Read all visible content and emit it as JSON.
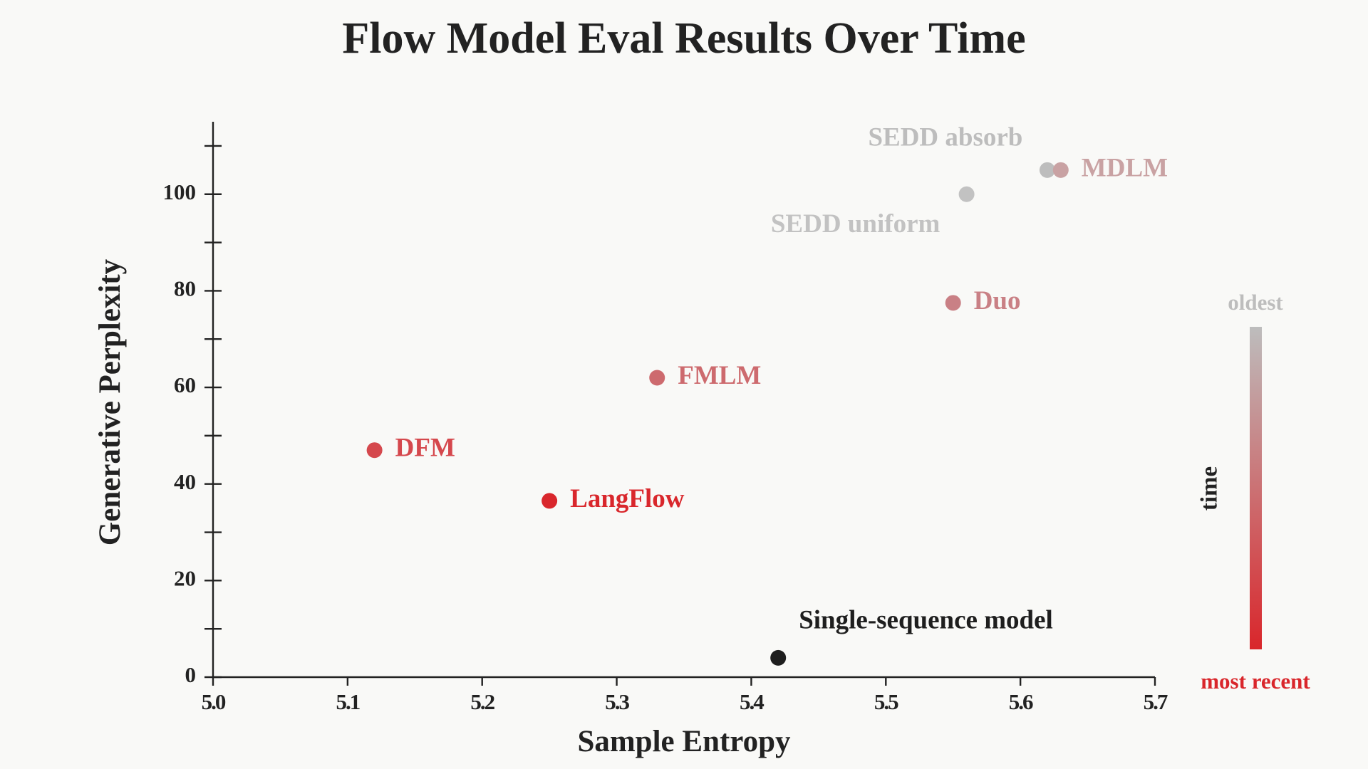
{
  "chart_data": {
    "type": "scatter",
    "title": "Flow Model Eval Results Over Time",
    "x_label": "Sample Entropy",
    "y_label": "Generative Perplexity",
    "xlim": [
      5.0,
      5.7
    ],
    "xticks": [
      {
        "value": 5.0,
        "label": "5.0"
      },
      5.1,
      5.2,
      5.3,
      5.4,
      5.5,
      5.6,
      5.7
    ],
    "ylim": [
      0,
      115
    ],
    "yticks": [
      0,
      20,
      40,
      60,
      80,
      100
    ],
    "yticks_minor": [
      10,
      30,
      50,
      70,
      90,
      110
    ],
    "points": [
      {
        "name": "SEDD absorb",
        "x": 5.62,
        "y": 105,
        "color": "#bdbdbd"
      },
      {
        "name": "MDLM",
        "x": 5.63,
        "y": 105,
        "color": "#c9a2a3"
      },
      {
        "name": "SEDD uniform",
        "x": 5.56,
        "y": 100,
        "color": "#c2c2c2"
      },
      {
        "name": "Duo",
        "x": 5.55,
        "y": 77.5,
        "color": "#c98085"
      },
      {
        "name": "FMLM",
        "x": 5.33,
        "y": 62,
        "color": "#cd6a6e"
      },
      {
        "name": "DFM",
        "x": 5.12,
        "y": 47,
        "color": "#d5484d"
      },
      {
        "name": "LangFlow",
        "x": 5.25,
        "y": 36.5,
        "color": "#d9272c"
      },
      {
        "name": "Single-sequence model",
        "x": 5.42,
        "y": 4,
        "color": "#1e1e1e"
      }
    ],
    "colorbar": {
      "label": "time",
      "top_label": "oldest",
      "bottom_label": "most recent",
      "colors": [
        "#bdbdbd",
        "#d9262b"
      ]
    }
  }
}
